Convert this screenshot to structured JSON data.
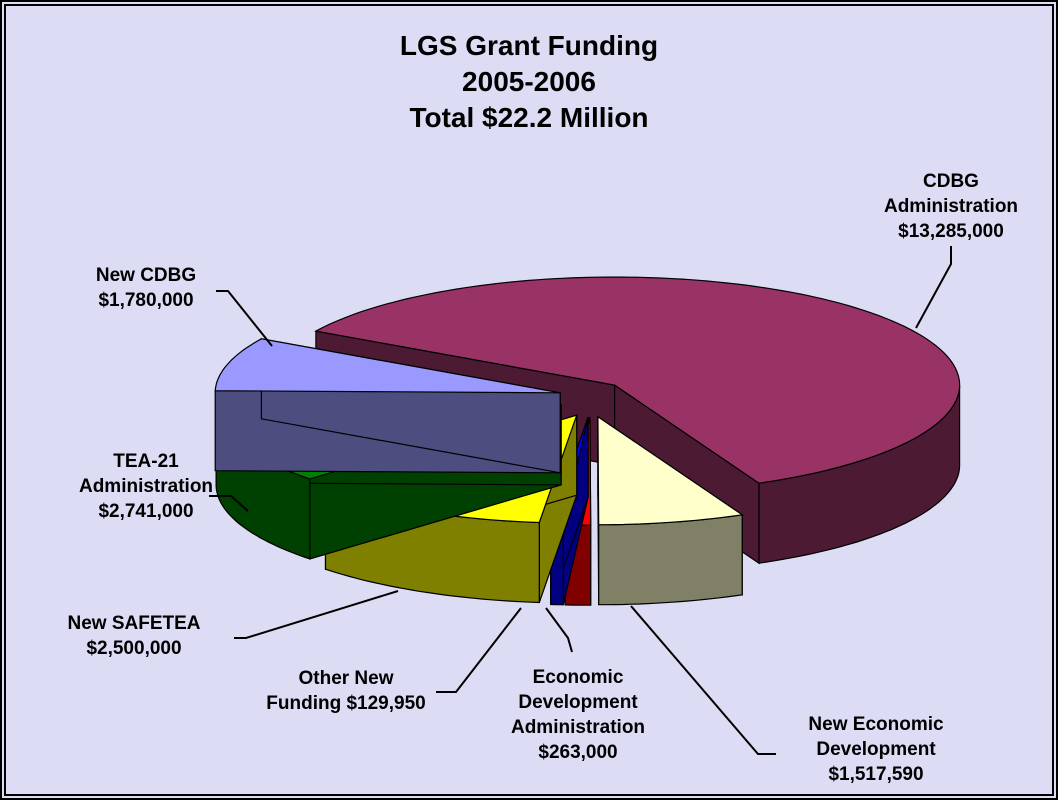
{
  "chart_data": {
    "type": "pie3d",
    "title": "LGS Grant Funding",
    "subtitle": [
      "2005-2006",
      "Total $22.2 Million"
    ],
    "categories": [
      "CDBG Administration",
      "New Economic Development",
      "Economic Development Administration",
      "Other New Funding",
      "New SAFETEA",
      "TEA-21 Administration",
      "New CDBG"
    ],
    "values": [
      13285000,
      1517590,
      263000,
      129950,
      2500000,
      2741000,
      1780000
    ],
    "value_labels": [
      "$13,285,000",
      "$1,517,590",
      "$263,000",
      "$129,950",
      "$2,500,000",
      "$2,741,000",
      "$1,780,000"
    ],
    "colors": [
      "#993366",
      "#ffffcc",
      "#ff0000",
      "#0000ff",
      "#ffff00",
      "#008000",
      "#9999ff"
    ]
  }
}
